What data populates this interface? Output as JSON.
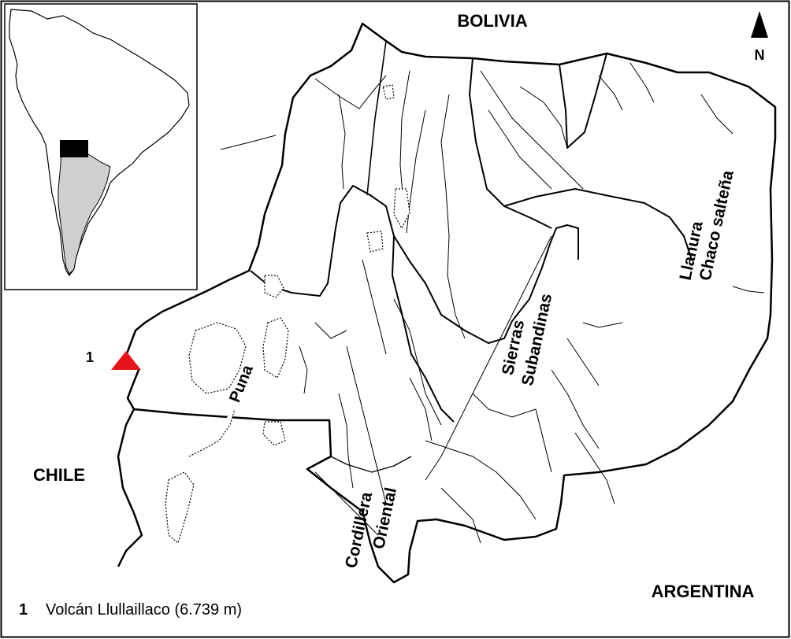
{
  "countries": {
    "bolivia": "BOLIVIA",
    "chile": "CHILE",
    "argentina": "ARGENTINA"
  },
  "north_arrow": {
    "letter": "N",
    "icon": "north-arrow-icon"
  },
  "regions": {
    "puna": "Puna",
    "sierras_line1": "Sierras",
    "sierras_line2": "Subandinas",
    "llanura_line1": "Llanura",
    "llanura_line2": "Chaco salteña",
    "cordillera_line1": "Cordillera",
    "cordillera_line2": "Oriental"
  },
  "volcano": {
    "number": "1",
    "marker_color": "#e8141c",
    "icon": "triangle-marker-icon"
  },
  "legend": {
    "number": "1",
    "text": "Volcán Llullaillaco (6.739 m)"
  },
  "inset": {
    "description_icon": "south-america-inset-map"
  }
}
